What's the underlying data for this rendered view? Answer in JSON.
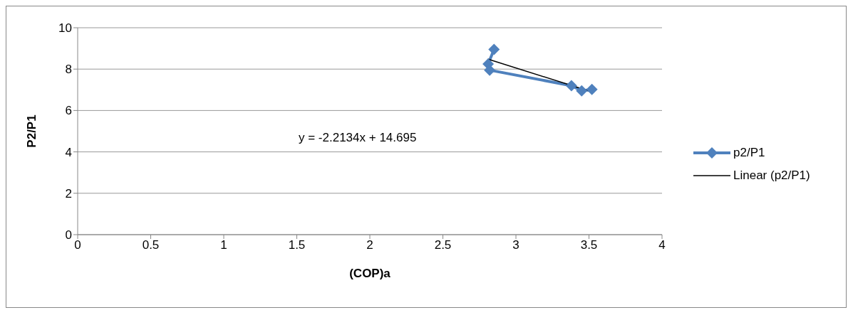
{
  "chart_data": {
    "type": "line",
    "xlabel": "(COP)a",
    "ylabel": "P2/P1",
    "xlim": [
      0,
      4
    ],
    "xticks": [
      0,
      0.5,
      1,
      1.5,
      2,
      2.5,
      3,
      3.5,
      4
    ],
    "ylim": [
      0,
      10
    ],
    "yticks": [
      0,
      2,
      4,
      6,
      8,
      10
    ],
    "grid": "y",
    "legend": "right",
    "marker": "diamond",
    "annotations": [
      "y = -2.2134x + 14.695"
    ],
    "series": [
      {
        "name": "p2/P1",
        "color": "#4f81bd",
        "x": [
          2.85,
          2.81,
          2.82,
          3.38,
          3.45,
          3.52
        ],
        "values": [
          8.95,
          8.25,
          7.95,
          7.2,
          6.95,
          7.02
        ]
      },
      {
        "name": "Linear (p2/P1)",
        "color": "#000000",
        "marker": "none",
        "x": [
          2.81,
          3.52
        ],
        "values": [
          8.48,
          6.9
        ]
      }
    ]
  }
}
